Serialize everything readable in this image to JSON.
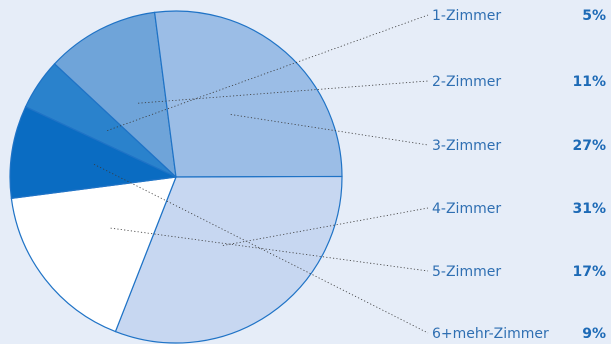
{
  "chart_data": {
    "type": "pie",
    "title": "",
    "slices": [
      {
        "label": "1-Zimmer",
        "display": "5%",
        "value": 5,
        "color": "#2a82cc"
      },
      {
        "label": "2-Zimmer",
        "display": "11%",
        "value": 11,
        "color": "#6fa4d9"
      },
      {
        "label": "3-Zimmer",
        "display": "27%",
        "value": 27,
        "color": "#9bbde6"
      },
      {
        "label": "4-Zimmer",
        "display": "31%",
        "value": 31,
        "color": "#c7d7f1"
      },
      {
        "label": "5-Zimmer",
        "display": "17%",
        "value": 17,
        "color": "#ffffff"
      },
      {
        "label": "6+mehr-Zimmer",
        "display": "9%",
        "value": 9,
        "color": "#0a6cc2"
      }
    ]
  }
}
